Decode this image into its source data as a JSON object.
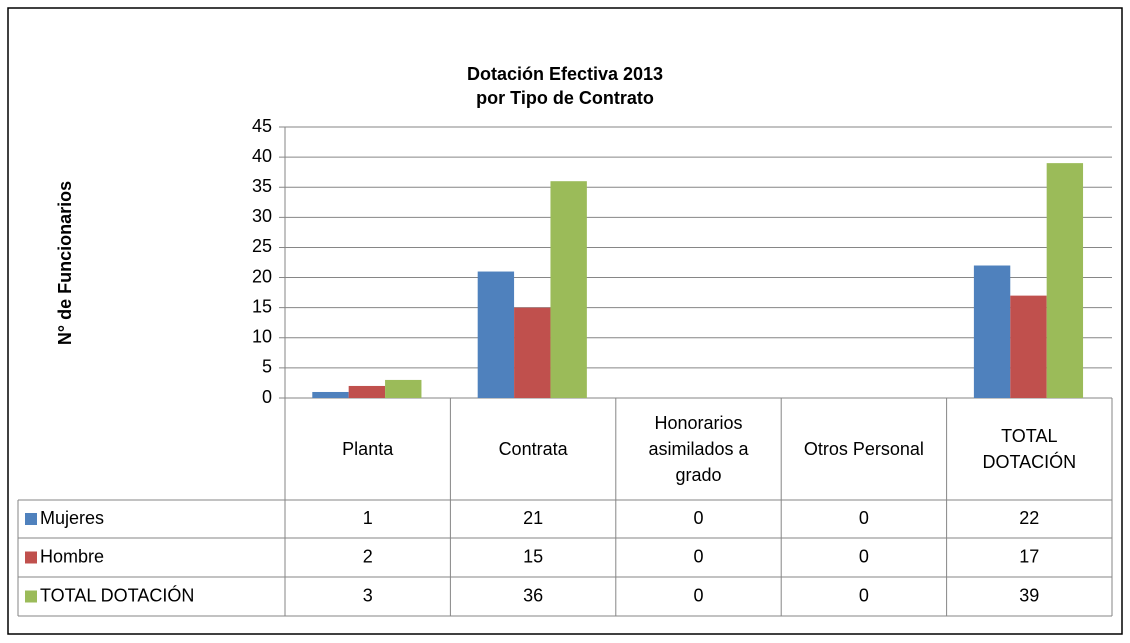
{
  "chart_data": {
    "type": "bar",
    "title_lines": [
      "Dotación Efectiva 2013",
      "por Tipo de Contrato"
    ],
    "y_label": "N° de Funcionarios",
    "categories": [
      "Planta",
      "Contrata",
      "Honorarios asimilados a grado",
      "Otros Personal",
      "TOTAL DOTACIÓN"
    ],
    "series": [
      {
        "name": "Mujeres",
        "color": "#4f81bd",
        "values": [
          1,
          21,
          0,
          0,
          22
        ]
      },
      {
        "name": "Hombre",
        "color": "#c0504d",
        "values": [
          2,
          15,
          0,
          0,
          17
        ]
      },
      {
        "name": "TOTAL DOTACIÓN",
        "color": "#9bbb59",
        "values": [
          3,
          36,
          0,
          0,
          39
        ]
      }
    ],
    "ylim": [
      0,
      45
    ],
    "yticks": [
      0,
      5,
      10,
      15,
      20,
      25,
      30,
      35,
      40,
      45
    ],
    "grid": true,
    "data_table": true
  }
}
